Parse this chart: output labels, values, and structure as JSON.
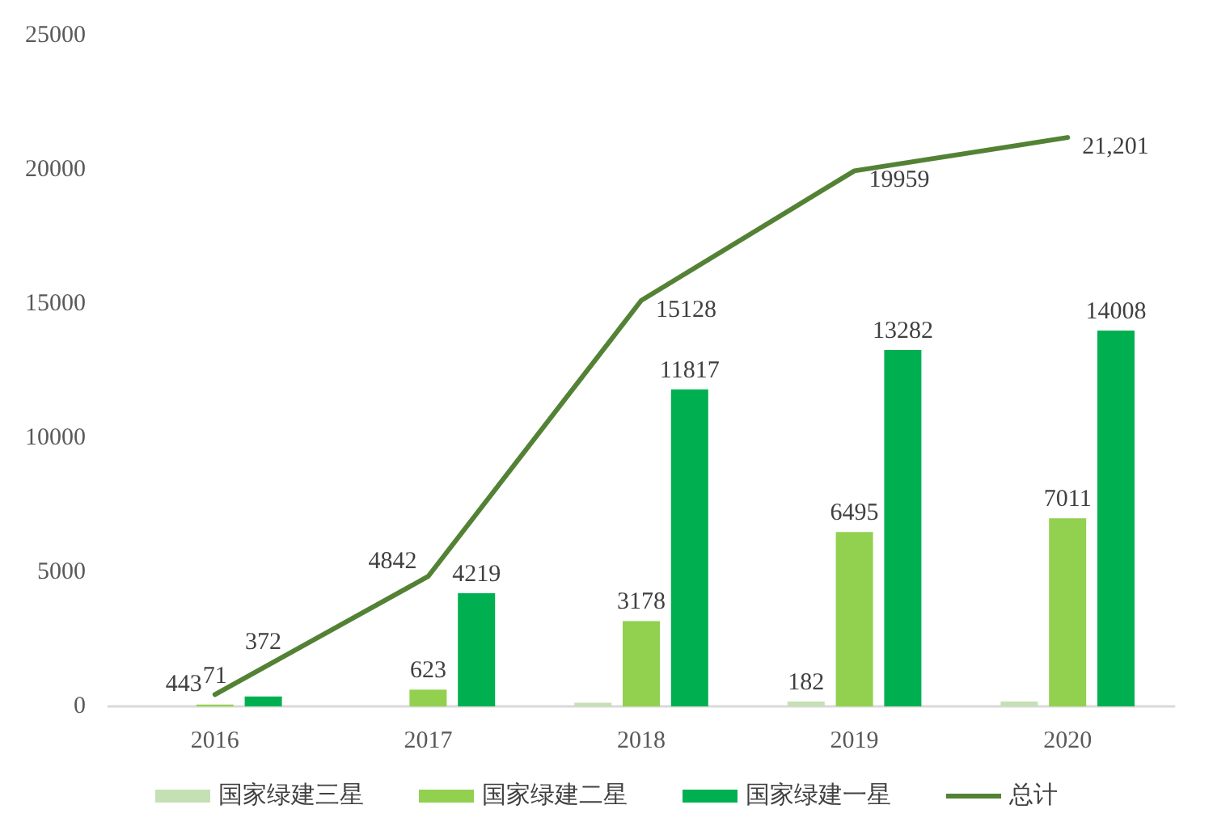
{
  "chart_data": {
    "type": "bar",
    "categories": [
      "2016",
      "2017",
      "2018",
      "2019",
      "2020"
    ],
    "ylim": [
      0,
      25000
    ],
    "yticks": [
      0,
      5000,
      10000,
      15000,
      20000,
      25000
    ],
    "grid": false,
    "legend": "bottom",
    "marker": "none",
    "line_style": "solid",
    "series": [
      {
        "name": "国家绿建三星",
        "color": "#c5e0b4",
        "values": [
          0,
          0,
          133,
          182,
          182
        ],
        "value_labels": [
          null,
          null,
          null,
          "182",
          null
        ]
      },
      {
        "name": "国家绿建二星",
        "color": "#92d050",
        "values": [
          71,
          623,
          3178,
          6495,
          7011
        ],
        "value_labels": [
          "71",
          "623",
          "3178",
          "6495",
          "7011"
        ]
      },
      {
        "name": "国家绿建一星",
        "color": "#00b050",
        "values": [
          372,
          4219,
          11817,
          13282,
          14008
        ],
        "value_labels": [
          "372",
          "4219",
          "11817",
          "13282",
          "14008"
        ]
      },
      {
        "name": "总计",
        "type": "line",
        "color": "#548235",
        "values": [
          443,
          4842,
          15128,
          19959,
          21201
        ],
        "value_labels": [
          "443",
          "4842",
          "15128",
          "19959",
          "21,201"
        ]
      }
    ]
  }
}
